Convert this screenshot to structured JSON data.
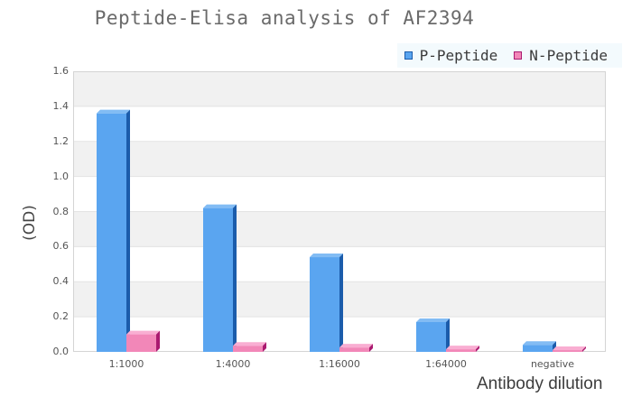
{
  "chart_data": {
    "type": "bar",
    "subtype": "3d-grouped-column",
    "title": "Peptide-Elisa analysis of AF2394",
    "xlabel": "Antibody dilution",
    "ylabel": "(OD)",
    "categories": [
      "1:1000",
      "1:4000",
      "1:16000",
      "1:64000",
      "negative"
    ],
    "series": [
      {
        "name": "P-Peptide",
        "values": [
          1.36,
          0.82,
          0.54,
          0.17,
          0.04
        ],
        "color": "#5aa5f0",
        "color_light": "#82bcf4",
        "color_dark": "#1b5cab"
      },
      {
        "name": "N-Peptide",
        "values": [
          0.1,
          0.035,
          0.025,
          0.015,
          0.01
        ],
        "color": "#f287b8",
        "color_light": "#f9aed2",
        "color_dark": "#aa1a70"
      }
    ],
    "ylim": [
      0,
      1.6
    ],
    "yticks": [
      "0.0",
      "0.2",
      "0.4",
      "0.6",
      "0.8",
      "1.0",
      "1.2",
      "1.4",
      "1.6"
    ],
    "grid": "alternating-bands",
    "legend_position": "top-right",
    "colors": {
      "band": "#f1f1f1",
      "band_alt": "#ffffff",
      "grid_line": "#e3e3e3",
      "plot_border": "#d4d4d4",
      "legend_bg": "#f3fafd",
      "title_text": "#6a6a6a",
      "tick_text": "#555555",
      "axis_title_text": "#3d3d3d",
      "legend_text": "#3a3a3a"
    }
  }
}
